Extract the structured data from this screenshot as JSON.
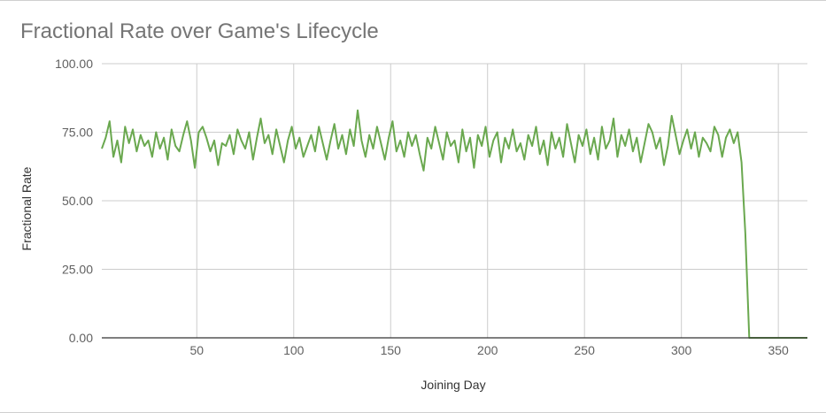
{
  "chart_data": {
    "type": "line",
    "title": "Fractional Rate over Game's Lifecycle",
    "xlabel": "Joining Day",
    "ylabel": "Fractional Rate",
    "xlim": [
      1,
      365
    ],
    "ylim": [
      0,
      100
    ],
    "x_ticks": [
      "50",
      "100",
      "150",
      "200",
      "250",
      "300",
      "350"
    ],
    "y_ticks": [
      "0.00",
      "25.00",
      "50.00",
      "75.00",
      "100.00"
    ],
    "grid": true,
    "legend": "none",
    "colors": {
      "line": "#6aa84f",
      "grid": "#cccccc",
      "axis": "#333333"
    },
    "series": [
      {
        "x": [
          1,
          3,
          5,
          7,
          9,
          11,
          13,
          15,
          17,
          19,
          21,
          23,
          25,
          27,
          29,
          31,
          33,
          35,
          37,
          39,
          41,
          43,
          45,
          47,
          49,
          51,
          53,
          55,
          57,
          59,
          61,
          63,
          65,
          67,
          69,
          71,
          73,
          75,
          77,
          79,
          81,
          83,
          85,
          87,
          89,
          91,
          93,
          95,
          97,
          99,
          101,
          103,
          105,
          107,
          109,
          111,
          113,
          115,
          117,
          119,
          121,
          123,
          125,
          127,
          129,
          131,
          133,
          135,
          137,
          139,
          141,
          143,
          145,
          147,
          149,
          151,
          153,
          155,
          157,
          159,
          161,
          163,
          165,
          167,
          169,
          171,
          173,
          175,
          177,
          179,
          181,
          183,
          185,
          187,
          189,
          191,
          193,
          195,
          197,
          199,
          201,
          203,
          205,
          207,
          209,
          211,
          213,
          215,
          217,
          219,
          221,
          223,
          225,
          227,
          229,
          231,
          233,
          235,
          237,
          239,
          241,
          243,
          245,
          247,
          249,
          251,
          253,
          255,
          257,
          259,
          261,
          263,
          265,
          267,
          269,
          271,
          273,
          275,
          277,
          279,
          281,
          283,
          285,
          287,
          289,
          291,
          293,
          295,
          297,
          299,
          301,
          303,
          305,
          307,
          309,
          311,
          313,
          315,
          317,
          319,
          321,
          323,
          325,
          327,
          329,
          331,
          333,
          335,
          337,
          339,
          341,
          343,
          345,
          347,
          349,
          351,
          353,
          355,
          357,
          359,
          361,
          363,
          365
        ],
        "y": [
          69,
          73,
          79,
          66,
          72,
          64,
          77,
          71,
          76,
          68,
          74,
          70,
          72,
          66,
          75,
          69,
          73,
          65,
          76,
          70,
          68,
          74,
          79,
          72,
          62,
          75,
          77,
          73,
          68,
          72,
          63,
          71,
          70,
          74,
          67,
          76,
          72,
          69,
          75,
          65,
          73,
          80,
          71,
          74,
          67,
          76,
          70,
          64,
          72,
          77,
          69,
          73,
          66,
          70,
          74,
          68,
          77,
          71,
          65,
          72,
          78,
          69,
          74,
          67,
          76,
          70,
          83,
          72,
          66,
          74,
          69,
          77,
          71,
          65,
          73,
          79,
          68,
          72,
          66,
          75,
          70,
          74,
          67,
          61,
          73,
          69,
          77,
          71,
          65,
          75,
          70,
          72,
          64,
          76,
          68,
          73,
          62,
          74,
          70,
          77,
          66,
          72,
          75,
          64,
          73,
          69,
          76,
          68,
          71,
          65,
          74,
          70,
          77,
          67,
          72,
          63,
          75,
          69,
          73,
          66,
          78,
          71,
          64,
          74,
          70,
          76,
          67,
          73,
          65,
          77,
          69,
          72,
          80,
          66,
          74,
          70,
          76,
          68,
          73,
          64,
          71,
          78,
          75,
          69,
          73,
          63,
          70,
          81,
          74,
          67,
          72,
          76,
          69,
          75,
          66,
          73,
          71,
          68,
          77,
          74,
          66,
          73,
          76,
          71,
          75,
          64,
          38,
          0,
          0,
          0,
          0,
          0,
          0,
          0,
          0,
          0,
          0,
          0,
          0,
          0,
          0,
          0,
          0
        ]
      }
    ]
  }
}
